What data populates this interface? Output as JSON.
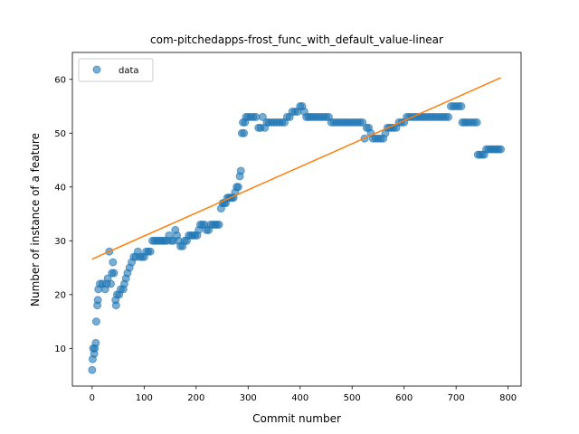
{
  "chart_data": {
    "type": "scatter",
    "title": "com-pitchedapps-frost_func_with_default_value-linear",
    "xlabel": "Commit number",
    "ylabel": "Number of instance of a feature",
    "xlim": [
      -38,
      825
    ],
    "ylim": [
      3,
      65
    ],
    "xticks": [
      0,
      100,
      200,
      300,
      400,
      500,
      600,
      700,
      800
    ],
    "yticks": [
      10,
      20,
      30,
      40,
      50,
      60
    ],
    "grid": false,
    "legend": {
      "position": "top-left",
      "entries": [
        "data"
      ]
    },
    "colors": {
      "data": "#1f77b4",
      "fit": "#ff7f0e"
    },
    "series": [
      {
        "name": "data",
        "kind": "scatter",
        "segments": [
          [
            0,
            6
          ],
          [
            1,
            8
          ],
          [
            2,
            10
          ],
          [
            4,
            9
          ],
          [
            5,
            10
          ],
          [
            7,
            11
          ],
          [
            8,
            15
          ],
          [
            10,
            18
          ],
          [
            11,
            19
          ],
          [
            12,
            21
          ],
          [
            15,
            22
          ],
          [
            20,
            22
          ],
          [
            25,
            21
          ],
          [
            28,
            22
          ],
          [
            30,
            23
          ],
          [
            33,
            28
          ],
          [
            36,
            22
          ],
          [
            38,
            24
          ],
          [
            40,
            26
          ],
          [
            42,
            24
          ],
          [
            45,
            19
          ],
          [
            46,
            18
          ],
          [
            48,
            20
          ],
          [
            52,
            20
          ],
          [
            55,
            21
          ],
          [
            60,
            21
          ],
          [
            62,
            22
          ],
          [
            65,
            23
          ],
          [
            68,
            24
          ],
          [
            72,
            25
          ],
          [
            76,
            26
          ],
          [
            80,
            27
          ],
          [
            84,
            27
          ],
          [
            88,
            28
          ],
          [
            92,
            27
          ],
          [
            96,
            27
          ],
          [
            100,
            27
          ],
          [
            104,
            28
          ],
          [
            108,
            28
          ],
          [
            112,
            28
          ],
          [
            116,
            30
          ],
          [
            120,
            30
          ],
          [
            124,
            30
          ],
          [
            128,
            30
          ],
          [
            132,
            30
          ],
          [
            136,
            30
          ],
          [
            140,
            30
          ],
          [
            144,
            30
          ],
          [
            148,
            31
          ],
          [
            152,
            30
          ],
          [
            156,
            30
          ],
          [
            160,
            32
          ],
          [
            163,
            31
          ],
          [
            166,
            30
          ],
          [
            170,
            29
          ],
          [
            174,
            29
          ],
          [
            178,
            30
          ],
          [
            182,
            30
          ],
          [
            186,
            31
          ],
          [
            190,
            31
          ],
          [
            194,
            31
          ],
          [
            198,
            31
          ],
          [
            202,
            31
          ],
          [
            205,
            32
          ],
          [
            208,
            33
          ],
          [
            212,
            33
          ],
          [
            216,
            33
          ],
          [
            220,
            32
          ],
          [
            224,
            32
          ],
          [
            228,
            33
          ],
          [
            232,
            33
          ],
          [
            236,
            33
          ],
          [
            240,
            33
          ],
          [
            244,
            33
          ],
          [
            248,
            36
          ],
          [
            251,
            37
          ],
          [
            254,
            37
          ],
          [
            257,
            37
          ],
          [
            260,
            38
          ],
          [
            263,
            38
          ],
          [
            266,
            38
          ],
          [
            269,
            38
          ],
          [
            272,
            38
          ],
          [
            275,
            39
          ],
          [
            278,
            40
          ],
          [
            281,
            40
          ],
          [
            284,
            42
          ],
          [
            286,
            43
          ],
          [
            288,
            50
          ],
          [
            290,
            52
          ],
          [
            292,
            50
          ],
          [
            294,
            52
          ],
          [
            296,
            53
          ],
          [
            300,
            53
          ],
          [
            305,
            53
          ],
          [
            310,
            53
          ],
          [
            315,
            53
          ],
          [
            320,
            51
          ],
          [
            324,
            51
          ],
          [
            328,
            53
          ],
          [
            332,
            51
          ],
          [
            336,
            52
          ],
          [
            340,
            52
          ],
          [
            345,
            52
          ],
          [
            350,
            52
          ],
          [
            355,
            52
          ],
          [
            360,
            52
          ],
          [
            365,
            52
          ],
          [
            370,
            52
          ],
          [
            375,
            53
          ],
          [
            380,
            53
          ],
          [
            385,
            54
          ],
          [
            390,
            54
          ],
          [
            395,
            54
          ],
          [
            400,
            55
          ],
          [
            404,
            55
          ],
          [
            408,
            54
          ],
          [
            412,
            53
          ],
          [
            416,
            53
          ],
          [
            420,
            53
          ],
          [
            425,
            53
          ],
          [
            430,
            53
          ],
          [
            435,
            53
          ],
          [
            440,
            53
          ],
          [
            445,
            53
          ],
          [
            450,
            53
          ],
          [
            455,
            53
          ],
          [
            460,
            52
          ],
          [
            465,
            52
          ],
          [
            470,
            52
          ],
          [
            475,
            52
          ],
          [
            480,
            52
          ],
          [
            485,
            52
          ],
          [
            490,
            52
          ],
          [
            495,
            52
          ],
          [
            500,
            52
          ],
          [
            505,
            52
          ],
          [
            510,
            52
          ],
          [
            515,
            52
          ],
          [
            520,
            52
          ],
          [
            524,
            49
          ],
          [
            528,
            51
          ],
          [
            532,
            51
          ],
          [
            536,
            50
          ],
          [
            540,
            49
          ],
          [
            545,
            49
          ],
          [
            550,
            49
          ],
          [
            555,
            49
          ],
          [
            560,
            49
          ],
          [
            564,
            50
          ],
          [
            568,
            51
          ],
          [
            572,
            51
          ],
          [
            576,
            51
          ],
          [
            580,
            51
          ],
          [
            585,
            51
          ],
          [
            590,
            52
          ],
          [
            595,
            52
          ],
          [
            600,
            52
          ],
          [
            605,
            53
          ],
          [
            610,
            53
          ],
          [
            615,
            53
          ],
          [
            620,
            53
          ],
          [
            625,
            53
          ],
          [
            630,
            53
          ],
          [
            635,
            53
          ],
          [
            640,
            53
          ],
          [
            645,
            53
          ],
          [
            650,
            53
          ],
          [
            655,
            53
          ],
          [
            660,
            53
          ],
          [
            665,
            53
          ],
          [
            670,
            53
          ],
          [
            675,
            53
          ],
          [
            680,
            53
          ],
          [
            685,
            53
          ],
          [
            690,
            55
          ],
          [
            695,
            55
          ],
          [
            700,
            55
          ],
          [
            705,
            55
          ],
          [
            710,
            55
          ],
          [
            712,
            52
          ],
          [
            716,
            52
          ],
          [
            720,
            52
          ],
          [
            725,
            52
          ],
          [
            730,
            52
          ],
          [
            735,
            52
          ],
          [
            740,
            52
          ],
          [
            742,
            46
          ],
          [
            746,
            46
          ],
          [
            750,
            46
          ],
          [
            754,
            46
          ],
          [
            758,
            47
          ],
          [
            762,
            47
          ],
          [
            766,
            47
          ],
          [
            770,
            47
          ],
          [
            774,
            47
          ],
          [
            778,
            47
          ],
          [
            782,
            47
          ],
          [
            786,
            47
          ]
        ]
      },
      {
        "name": "",
        "kind": "line",
        "segments": [
          [
            0,
            26.6
          ],
          [
            786,
            60.3
          ]
        ]
      }
    ]
  }
}
